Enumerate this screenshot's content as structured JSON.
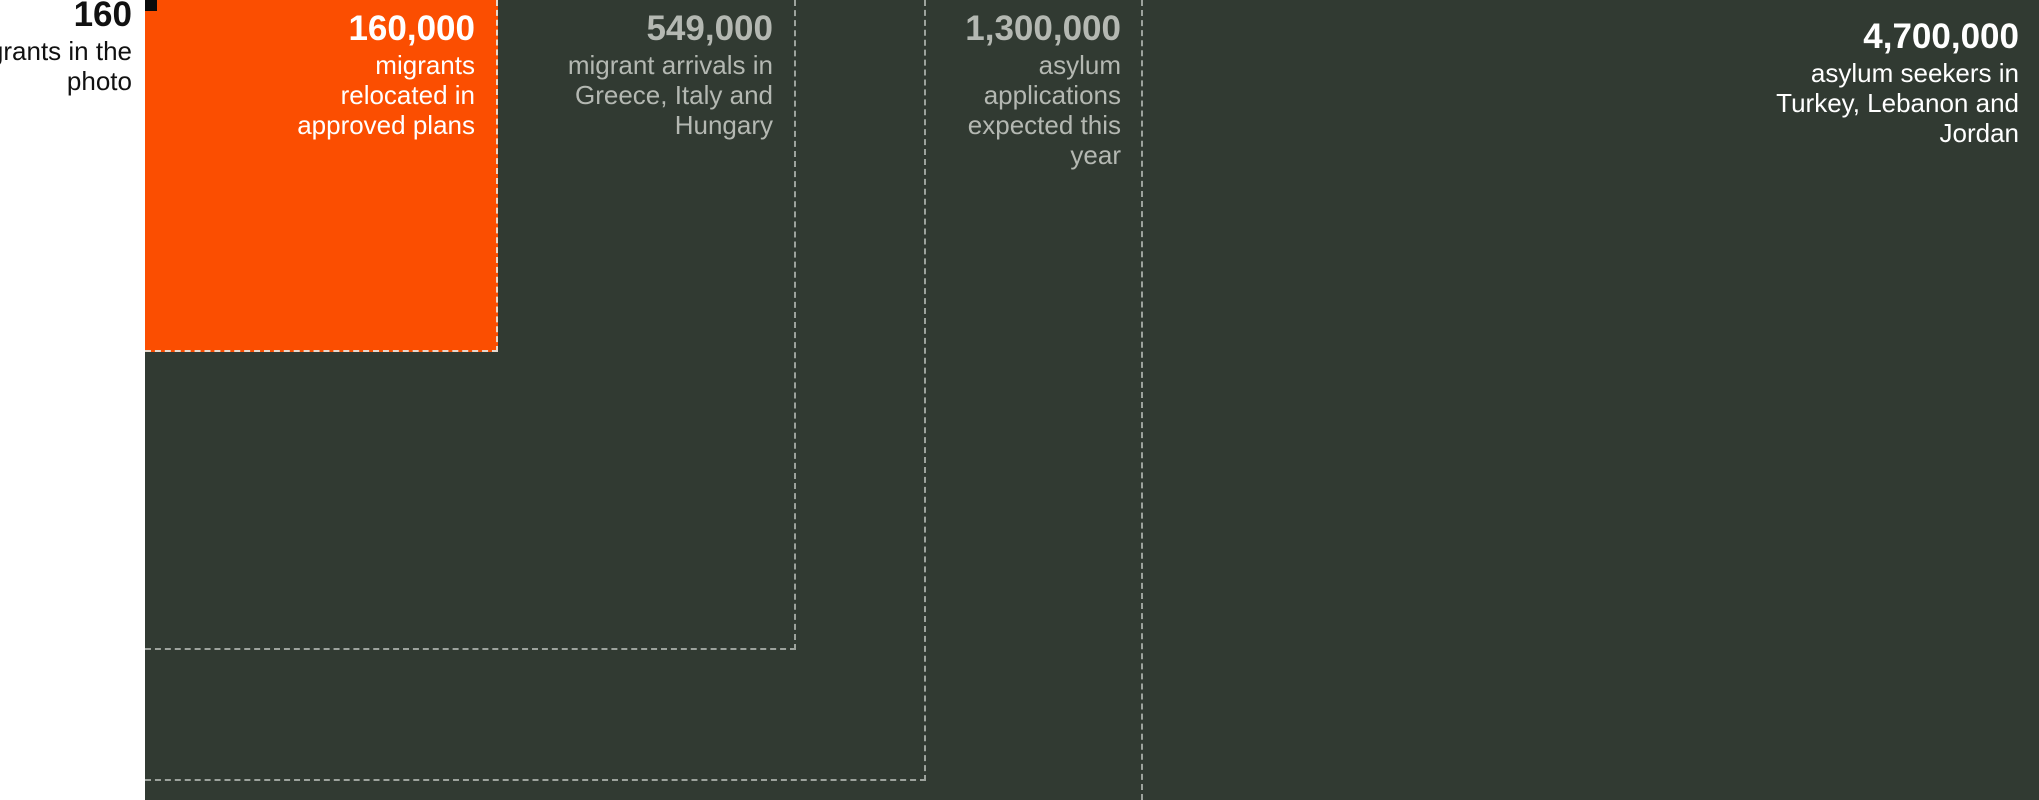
{
  "chart_data": {
    "type": "area",
    "subtype": "nested proportional squares",
    "title": "",
    "items": [
      {
        "value": 160,
        "value_label": "160",
        "label": "migrants in the photo",
        "color": "#0b0b0b"
      },
      {
        "value": 160000,
        "value_label": "160,000",
        "label": "migrants relocated in approved plans",
        "color": "#fb4e01"
      },
      {
        "value": 549000,
        "value_label": "549,000",
        "label": "migrant arrivals in Greece, Italy and Hungary",
        "color": "#313a32"
      },
      {
        "value": 1300000,
        "value_label": "1,300,000",
        "label": "asylum applications expected this year",
        "color": "#313a32"
      },
      {
        "value": 4700000,
        "value_label": "4,700,000",
        "label": "asylum seekers in Turkey, Lebanon and Jordan",
        "color": "#313a32"
      }
    ],
    "colors": {
      "background": "#313a32",
      "highlight": "#fb4e01",
      "dashed_border": "#9da39d",
      "page": "#ffffff"
    }
  }
}
